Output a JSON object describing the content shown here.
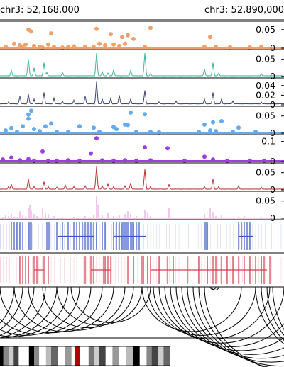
{
  "region": {
    "start_label": "chr3: 52,168,000",
    "end_label": "chr3: 52,890,000"
  },
  "chart_data": [
    {
      "type": "scatter",
      "track": "track-1-orange-dots",
      "color": "#f0a068",
      "ylim": [
        0,
        0.065
      ],
      "yticks": [
        {
          "value": 0.05,
          "label": "0.05"
        },
        {
          "value": 0,
          "label": "0"
        }
      ],
      "x": [
        0.02,
        0.05,
        0.07,
        0.08,
        0.09,
        0.1,
        0.11,
        0.12,
        0.14,
        0.15,
        0.17,
        0.18,
        0.19,
        0.22,
        0.24,
        0.26,
        0.3,
        0.33,
        0.34,
        0.35,
        0.37,
        0.39,
        0.4,
        0.42,
        0.43,
        0.44,
        0.45,
        0.47,
        0.51,
        0.53,
        0.72,
        0.74,
        0.76,
        0.81,
        0.88,
        0.92
      ],
      "y": [
        0.004,
        0.012,
        0.008,
        0.003,
        0.01,
        0.05,
        0.045,
        0.006,
        0.003,
        0.002,
        0.01,
        0.04,
        0.004,
        0.002,
        0.003,
        0.005,
        0.004,
        0.003,
        0.052,
        0.012,
        0.008,
        0.038,
        0.01,
        0.006,
        0.03,
        0.012,
        0.035,
        0.025,
        0.004,
        0.055,
        0.004,
        0.03,
        0.004,
        0.003,
        0.002,
        0.003
      ]
    },
    {
      "type": "line",
      "track": "track-2-teal-line",
      "color": "#3ab79a",
      "ylim": [
        0,
        0.07
      ],
      "yticks": [
        {
          "value": 0.05,
          "label": "0.05"
        },
        {
          "value": 0,
          "label": "0"
        }
      ],
      "peaks": [
        [
          0.04,
          0.018
        ],
        [
          0.1,
          0.05
        ],
        [
          0.12,
          0.025
        ],
        [
          0.155,
          0.04
        ],
        [
          0.165,
          0.012
        ],
        [
          0.22,
          0.012
        ],
        [
          0.34,
          0.068
        ],
        [
          0.36,
          0.014
        ],
        [
          0.38,
          0.01
        ],
        [
          0.4,
          0.02
        ],
        [
          0.46,
          0.018
        ],
        [
          0.51,
          0.068
        ],
        [
          0.53,
          0.008
        ],
        [
          0.72,
          0.022
        ],
        [
          0.75,
          0.04
        ],
        [
          0.77,
          0.01
        ],
        [
          0.92,
          0.008
        ]
      ]
    },
    {
      "type": "line",
      "track": "track-3-navy-line",
      "color": "#3c4678",
      "ylim": [
        0,
        0.05
      ],
      "yticks": [
        {
          "value": 0.04,
          "label": "0.04"
        },
        {
          "value": 0.02,
          "label": "0.02"
        },
        {
          "value": 0,
          "label": "0"
        }
      ],
      "peaks": [
        [
          0.03,
          0.006
        ],
        [
          0.07,
          0.018
        ],
        [
          0.1,
          0.022
        ],
        [
          0.12,
          0.012
        ],
        [
          0.155,
          0.026
        ],
        [
          0.19,
          0.014
        ],
        [
          0.22,
          0.008
        ],
        [
          0.26,
          0.01
        ],
        [
          0.3,
          0.018
        ],
        [
          0.34,
          0.048
        ],
        [
          0.36,
          0.012
        ],
        [
          0.39,
          0.014
        ],
        [
          0.42,
          0.02
        ],
        [
          0.46,
          0.012
        ],
        [
          0.51,
          0.03
        ],
        [
          0.56,
          0.006
        ],
        [
          0.62,
          0.008
        ],
        [
          0.72,
          0.012
        ],
        [
          0.75,
          0.026
        ],
        [
          0.78,
          0.012
        ],
        [
          0.82,
          0.008
        ],
        [
          0.92,
          0.006
        ]
      ]
    },
    {
      "type": "scatter",
      "track": "track-4-blue-dots",
      "color": "#64aaf0",
      "ylim": [
        0,
        0.07
      ],
      "yticks": [
        {
          "value": 0.05,
          "label": "0.05"
        },
        {
          "value": 0,
          "label": "0"
        }
      ],
      "x": [
        0.02,
        0.04,
        0.06,
        0.08,
        0.1,
        0.1,
        0.11,
        0.12,
        0.14,
        0.16,
        0.18,
        0.2,
        0.24,
        0.28,
        0.33,
        0.35,
        0.4,
        0.41,
        0.44,
        0.45,
        0.46,
        0.48,
        0.51,
        0.53,
        0.56,
        0.7,
        0.72,
        0.74,
        0.75,
        0.76,
        0.78,
        0.82,
        0.84,
        0.9
      ],
      "y": [
        0.008,
        0.015,
        0.004,
        0.02,
        0.054,
        0.042,
        0.065,
        0.012,
        0.006,
        0.02,
        0.028,
        0.004,
        0.004,
        0.02,
        0.016,
        0.004,
        0.018,
        0.012,
        0.025,
        0.024,
        0.06,
        0.004,
        0.055,
        0.004,
        0.003,
        0.004,
        0.025,
        0.008,
        0.032,
        0.006,
        0.035,
        0.004,
        0.016,
        0.004
      ]
    },
    {
      "type": "scatter",
      "track": "track-5-purple-dots",
      "color": "#9a40e0",
      "ylim": [
        0,
        0.12
      ],
      "yticks": [
        {
          "value": 0.1,
          "label": "0.1"
        },
        {
          "value": 0,
          "label": "0"
        }
      ],
      "x": [
        0.01,
        0.04,
        0.07,
        0.1,
        0.12,
        0.15,
        0.17,
        0.2,
        0.24,
        0.28,
        0.32,
        0.34,
        0.36,
        0.4,
        0.44,
        0.48,
        0.51,
        0.53,
        0.59,
        0.65,
        0.72,
        0.75,
        0.8,
        0.88,
        0.93
      ],
      "y": [
        0.01,
        0.02,
        0.006,
        0.012,
        0.004,
        0.05,
        0.004,
        0.004,
        0.006,
        0.004,
        0.04,
        0.116,
        0.006,
        0.004,
        0.006,
        0.004,
        0.07,
        0.006,
        0.066,
        0.004,
        0.024,
        0.01,
        0.004,
        0.004,
        0.004
      ]
    },
    {
      "type": "line",
      "track": "track-6-red-line",
      "color": "#c03030",
      "ylim": [
        0,
        0.07
      ],
      "yticks": [
        {
          "value": 0.05,
          "label": "0.05"
        },
        {
          "value": 0,
          "label": "0"
        }
      ],
      "peaks": [
        [
          0.03,
          0.01
        ],
        [
          0.04,
          0.016
        ],
        [
          0.1,
          0.032
        ],
        [
          0.12,
          0.01
        ],
        [
          0.155,
          0.024
        ],
        [
          0.17,
          0.01
        ],
        [
          0.2,
          0.008
        ],
        [
          0.23,
          0.014
        ],
        [
          0.26,
          0.01
        ],
        [
          0.3,
          0.012
        ],
        [
          0.34,
          0.068
        ],
        [
          0.36,
          0.012
        ],
        [
          0.38,
          0.018
        ],
        [
          0.4,
          0.01
        ],
        [
          0.44,
          0.012
        ],
        [
          0.46,
          0.02
        ],
        [
          0.51,
          0.06
        ],
        [
          0.53,
          0.01
        ],
        [
          0.595,
          0.016
        ],
        [
          0.72,
          0.01
        ],
        [
          0.75,
          0.032
        ],
        [
          0.77,
          0.01
        ],
        [
          0.84,
          0.012
        ],
        [
          0.92,
          0.008
        ]
      ]
    },
    {
      "type": "bar",
      "track": "track-7-pink-bars",
      "color": "#e890d8",
      "ylim": [
        0,
        0.07
      ],
      "yticks": [
        {
          "value": 0.05,
          "label": "0.05"
        },
        {
          "value": 0,
          "label": "0"
        }
      ],
      "x": [
        0.01,
        0.02,
        0.03,
        0.04,
        0.05,
        0.06,
        0.07,
        0.08,
        0.09,
        0.1,
        0.105,
        0.11,
        0.12,
        0.13,
        0.15,
        0.16,
        0.17,
        0.19,
        0.22,
        0.26,
        0.3,
        0.33,
        0.34,
        0.345,
        0.36,
        0.38,
        0.4,
        0.42,
        0.44,
        0.45,
        0.46,
        0.48,
        0.51,
        0.52,
        0.53,
        0.595,
        0.72,
        0.74,
        0.75,
        0.76,
        0.78,
        0.84,
        0.86,
        0.92
      ],
      "values": [
        0.004,
        0.008,
        0.006,
        0.012,
        0.004,
        0.003,
        0.02,
        0.008,
        0.005,
        0.03,
        0.04,
        0.022,
        0.012,
        0.006,
        0.03,
        0.016,
        0.012,
        0.006,
        0.004,
        0.004,
        0.006,
        0.01,
        0.066,
        0.04,
        0.01,
        0.016,
        0.006,
        0.008,
        0.012,
        0.02,
        0.012,
        0.006,
        0.024,
        0.018,
        0.006,
        0.03,
        0.012,
        0.03,
        0.018,
        0.006,
        0.008,
        0.004,
        0.006,
        0.004
      ]
    },
    {
      "type": "rug",
      "track": "track-8-blue-features",
      "color": "#3a56c8",
      "x": [
        0.04,
        0.05,
        0.06,
        0.07,
        0.08,
        0.1,
        0.105,
        0.11,
        0.165,
        0.17,
        0.175,
        0.2,
        0.22,
        0.24,
        0.26,
        0.27,
        0.28,
        0.29,
        0.3,
        0.31,
        0.32,
        0.33,
        0.34,
        0.36,
        0.37,
        0.4,
        0.41,
        0.42,
        0.43,
        0.435,
        0.44,
        0.445,
        0.45,
        0.46,
        0.465,
        0.47,
        0.48,
        0.49,
        0.72,
        0.725,
        0.73,
        0.84,
        0.85,
        0.86,
        0.87,
        0.88
      ],
      "spans": [
        [
          0.205,
          0.33
        ],
        [
          0.4,
          0.515
        ],
        [
          0.84,
          0.89
        ]
      ]
    },
    {
      "type": "rug",
      "track": "track-9-red-features",
      "color": "#d04050",
      "x": [
        0.07,
        0.08,
        0.09,
        0.1,
        0.12,
        0.13,
        0.155,
        0.17,
        0.3,
        0.32,
        0.33,
        0.365,
        0.37,
        0.38,
        0.39,
        0.45,
        0.47,
        0.5,
        0.505,
        0.52,
        0.53,
        0.56,
        0.59,
        0.61,
        0.66,
        0.7,
        0.73,
        0.75,
        0.76,
        0.78,
        0.8,
        0.82,
        0.84,
        0.86,
        0.88,
        0.9,
        0.92,
        0.93,
        0.95
      ],
      "spans": [
        [
          0.12,
          0.155
        ],
        [
          0.32,
          0.39
        ],
        [
          0.53,
          0.94
        ]
      ]
    },
    {
      "type": "arcs",
      "track": "track-10-arcs",
      "color": "#000000",
      "ends": [
        [
          -0.4,
          0.05
        ],
        [
          -0.35,
          0.08
        ],
        [
          -0.3,
          0.12
        ],
        [
          -0.25,
          0.16
        ],
        [
          -0.2,
          0.2
        ],
        [
          -0.15,
          0.24
        ],
        [
          -0.1,
          0.28
        ],
        [
          -0.05,
          0.32
        ],
        [
          0.0,
          0.36
        ],
        [
          0.05,
          0.4
        ],
        [
          0.1,
          0.44
        ],
        [
          0.15,
          0.47
        ],
        [
          0.2,
          0.5
        ],
        [
          0.25,
          0.53
        ],
        [
          0.5,
          0.85
        ],
        [
          0.52,
          0.9
        ],
        [
          0.54,
          0.95
        ],
        [
          0.56,
          1.0
        ],
        [
          0.58,
          1.05
        ],
        [
          0.6,
          1.1
        ],
        [
          0.62,
          1.15
        ],
        [
          0.64,
          1.2
        ],
        [
          0.66,
          1.25
        ],
        [
          0.68,
          1.3
        ],
        [
          0.7,
          1.35
        ],
        [
          0.72,
          1.4
        ],
        [
          0.74,
          0.76
        ],
        [
          0.745,
          0.77
        ],
        [
          0.9,
          1.5
        ],
        [
          0.92,
          1.55
        ],
        [
          0.94,
          1.6
        ],
        [
          0.96,
          1.7
        ]
      ]
    },
    {
      "type": "ideogram",
      "track": "chromosome-ideogram",
      "bands": [
        [
          0.0,
          0.02,
          "#000000"
        ],
        [
          0.02,
          0.05,
          "#888888"
        ],
        [
          0.05,
          0.08,
          "#cccccc"
        ],
        [
          0.08,
          0.11,
          "#444444"
        ],
        [
          0.11,
          0.17,
          "#ffffff"
        ],
        [
          0.17,
          0.2,
          "#000000"
        ],
        [
          0.2,
          0.23,
          "#888888"
        ],
        [
          0.23,
          0.27,
          "#ffffff"
        ],
        [
          0.27,
          0.3,
          "#bbbbbb"
        ],
        [
          0.3,
          0.34,
          "#666666"
        ],
        [
          0.34,
          0.38,
          "#ffffff"
        ],
        [
          0.38,
          0.42,
          "#999999"
        ],
        [
          0.42,
          0.44,
          "#ffffff"
        ],
        [
          0.44,
          0.47,
          "#b40000"
        ],
        [
          0.47,
          0.52,
          "#ffffff"
        ],
        [
          0.52,
          0.55,
          "#777777"
        ],
        [
          0.55,
          0.58,
          "#cccccc"
        ],
        [
          0.58,
          0.62,
          "#444444"
        ],
        [
          0.62,
          0.66,
          "#ffffff"
        ],
        [
          0.66,
          0.7,
          "#999999"
        ],
        [
          0.7,
          0.74,
          "#ffffff"
        ],
        [
          0.74,
          0.78,
          "#bbbbbb"
        ],
        [
          0.78,
          0.82,
          "#000000"
        ],
        [
          0.82,
          0.86,
          "#ffffff"
        ],
        [
          0.86,
          0.89,
          "#888888"
        ],
        [
          0.89,
          0.93,
          "#444444"
        ],
        [
          0.93,
          0.96,
          "#cccccc"
        ],
        [
          0.96,
          1.0,
          "#666666"
        ]
      ],
      "centromere_at": 0.455,
      "color": "#b40000"
    }
  ]
}
